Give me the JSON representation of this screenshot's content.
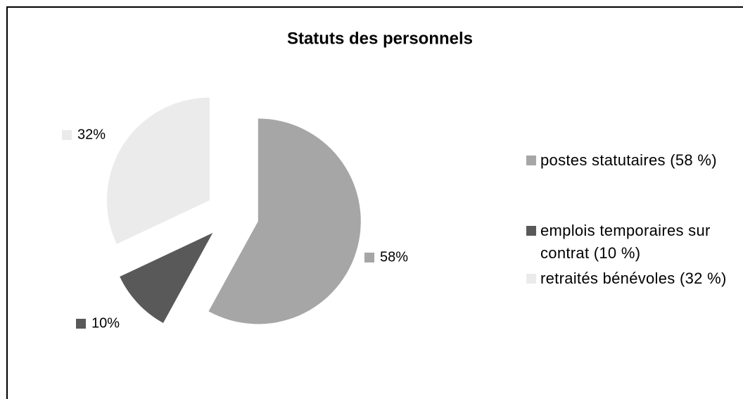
{
  "chart_data": {
    "type": "pie",
    "title": "Statuts des personnels",
    "categories": [
      "postes statutaires (58 %)",
      "emplois temporaires sur contrat (10 %)",
      "retraités bénévoles (32 %)"
    ],
    "values": [
      58,
      10,
      32
    ],
    "value_labels": [
      "58%",
      "10%",
      "32%"
    ],
    "colors": [
      "#a6a6a6",
      "#595959",
      "#ebebeb"
    ],
    "legend": "right"
  }
}
